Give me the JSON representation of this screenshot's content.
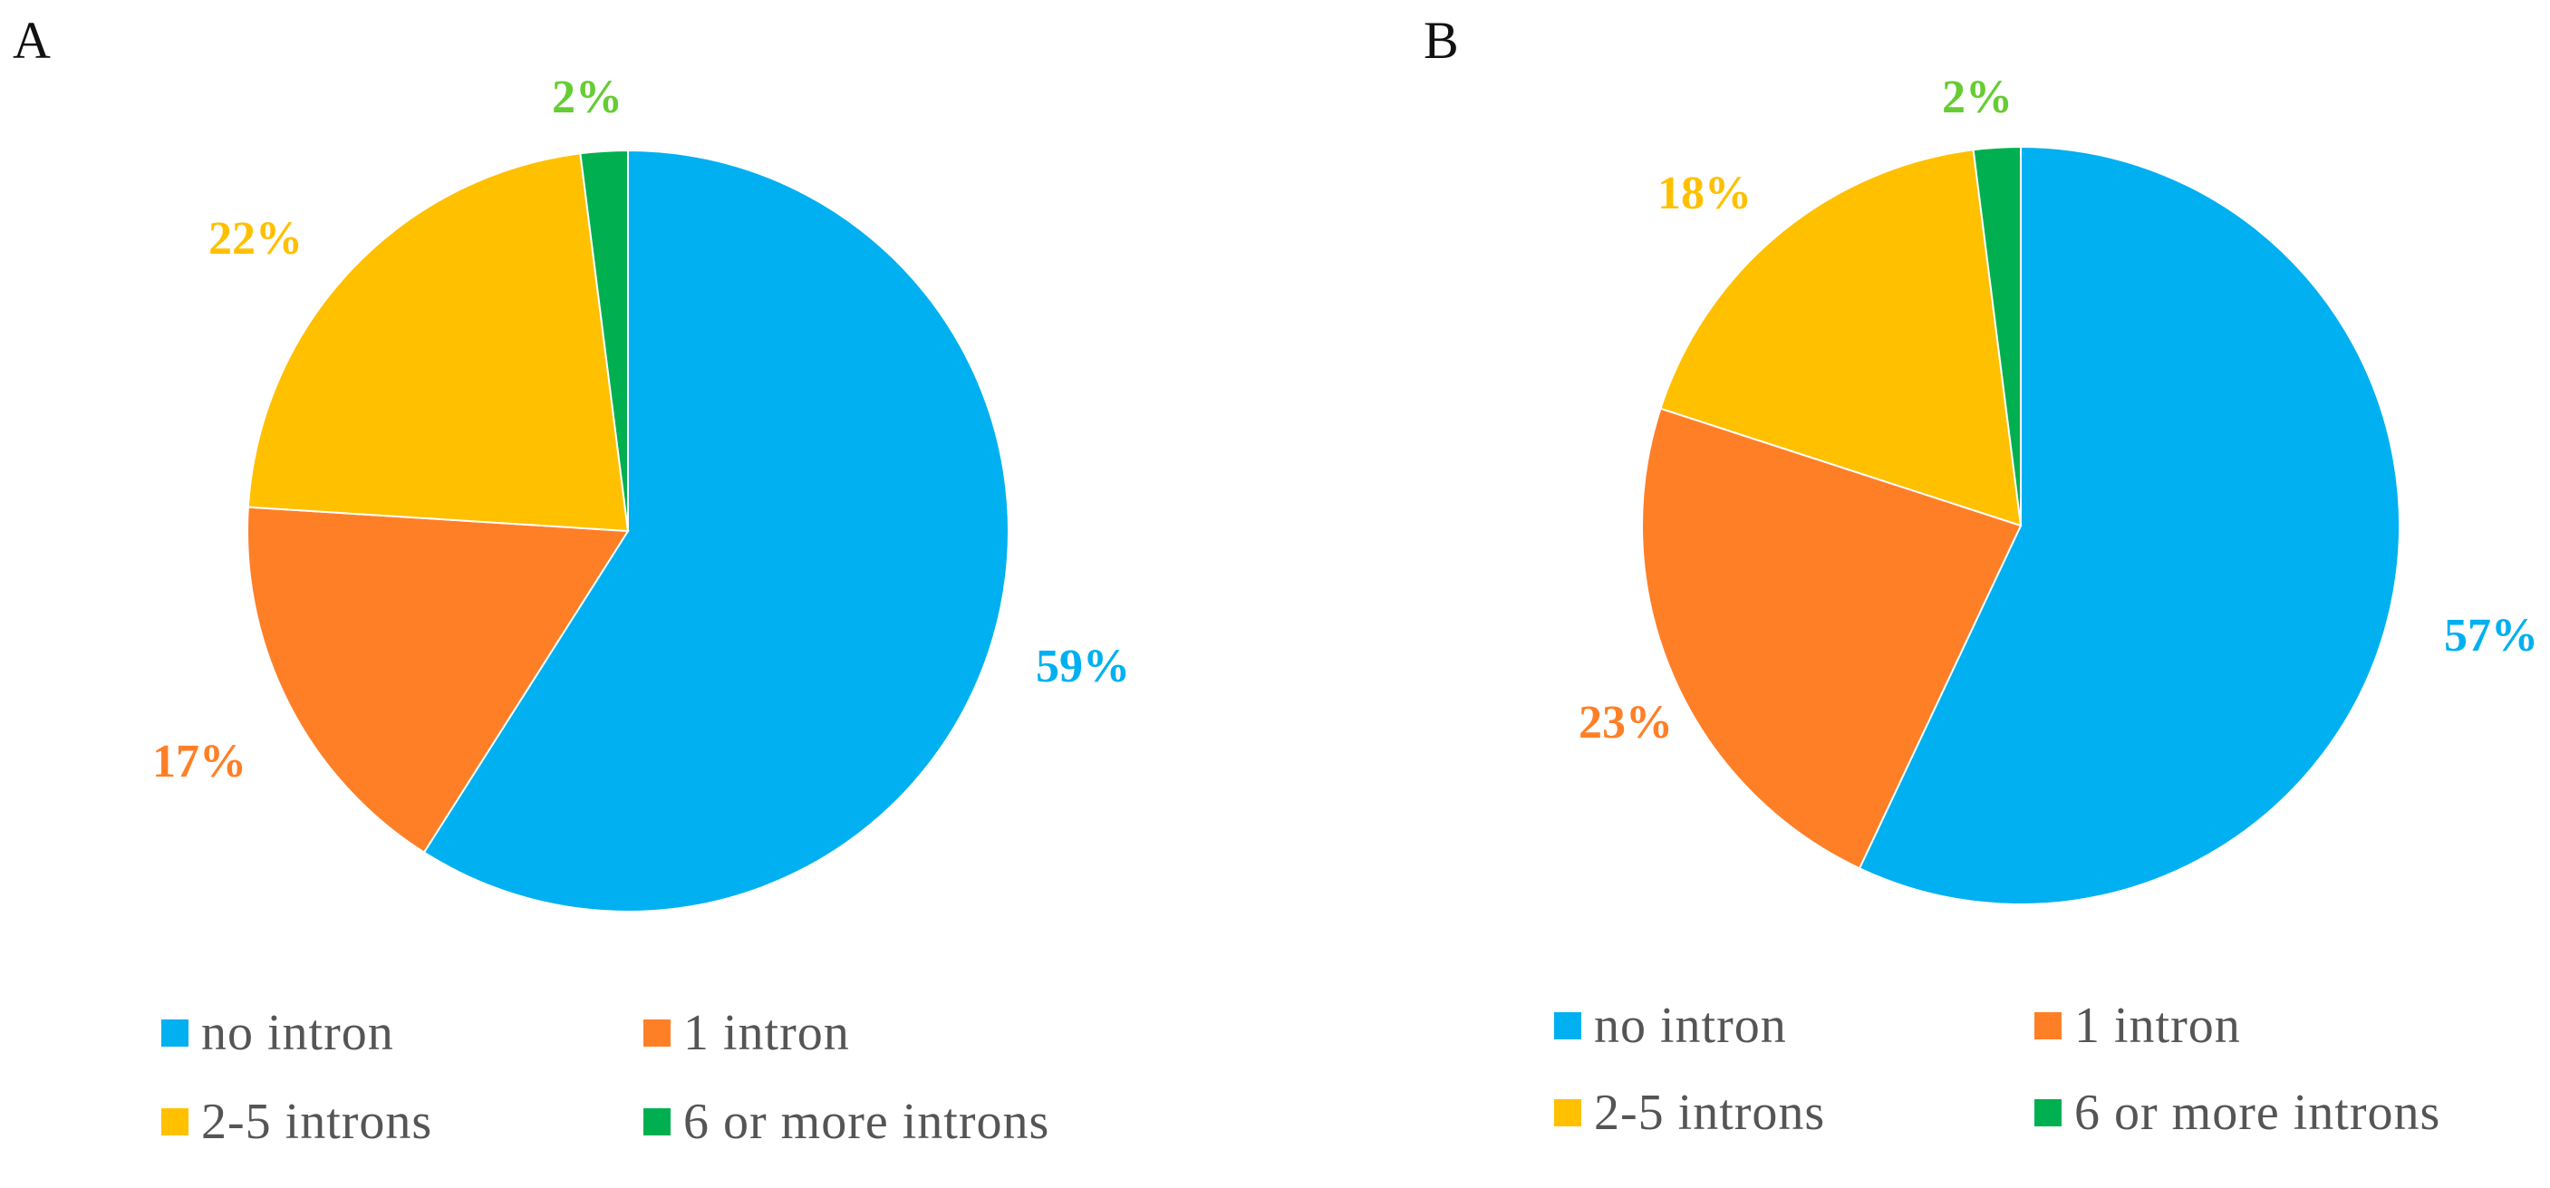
{
  "colors": {
    "no_intron": "#00B0F0",
    "one_intron": "#FF7F27",
    "two_five_introns": "#FFC000",
    "six_plus_introns": "#00B050",
    "label_blue": "#00B0F0",
    "label_orange": "#FF7F27",
    "label_yellow": "#FFC000",
    "label_green": "#66CC33"
  },
  "chart_data": [
    {
      "type": "pie",
      "panel_label": "A",
      "slices": [
        {
          "name": "no intron",
          "value": 59,
          "label": "59%",
          "color": "#00B0F0"
        },
        {
          "name": "1 intron",
          "value": 17,
          "label": "17%",
          "color": "#FF7F27"
        },
        {
          "name": "2-5 introns",
          "value": 22,
          "label": "22%",
          "color": "#FFC000"
        },
        {
          "name": "6 or more introns",
          "value": 2,
          "label": "2%",
          "color": "#00B050"
        }
      ],
      "legend": [
        "no intron",
        "1 intron",
        "2-5 introns",
        "6 or more introns"
      ],
      "legend_placement": "bottom"
    },
    {
      "type": "pie",
      "panel_label": "B",
      "slices": [
        {
          "name": "no intron",
          "value": 57,
          "label": "57%",
          "color": "#00B0F0"
        },
        {
          "name": "1 intron",
          "value": 23,
          "label": "23%",
          "color": "#FF7F27"
        },
        {
          "name": "2-5 introns",
          "value": 18,
          "label": "18%",
          "color": "#FFC000"
        },
        {
          "name": "6 or more introns",
          "value": 2,
          "label": "2%",
          "color": "#00B050"
        }
      ],
      "legend": [
        "no intron",
        "1 intron",
        "2-5 introns",
        "6 or more introns"
      ],
      "legend_placement": "bottom"
    }
  ]
}
